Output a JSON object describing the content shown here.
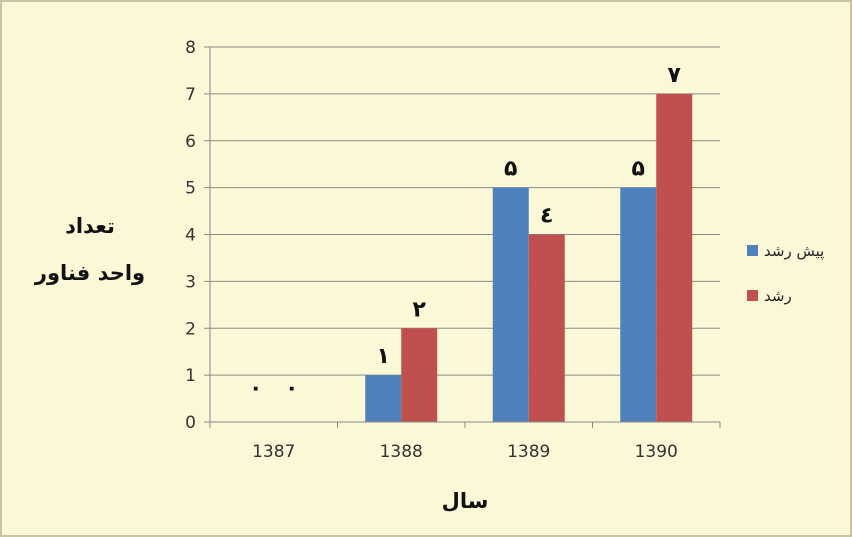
{
  "chart_data": {
    "type": "bar",
    "categories": [
      "1387",
      "1388",
      "1389",
      "1390"
    ],
    "series": [
      {
        "name": "پیش رشد",
        "color": "#4f81bd",
        "values": [
          0,
          1,
          5,
          5
        ],
        "labels": [
          "۰",
          "۱",
          "۵",
          "۵"
        ]
      },
      {
        "name": "رشد",
        "color": "#c0504d",
        "values": [
          0,
          2,
          4,
          7
        ],
        "labels": [
          "۰",
          "۲",
          "٤",
          "۷"
        ]
      }
    ],
    "xlabel": "سال",
    "ylabel": [
      "تعداد",
      "واحد فناور"
    ],
    "ylim": [
      0,
      8
    ],
    "yticks": [
      0,
      1,
      2,
      3,
      4,
      5,
      6,
      7,
      8
    ],
    "grid": true,
    "legend": "right"
  }
}
